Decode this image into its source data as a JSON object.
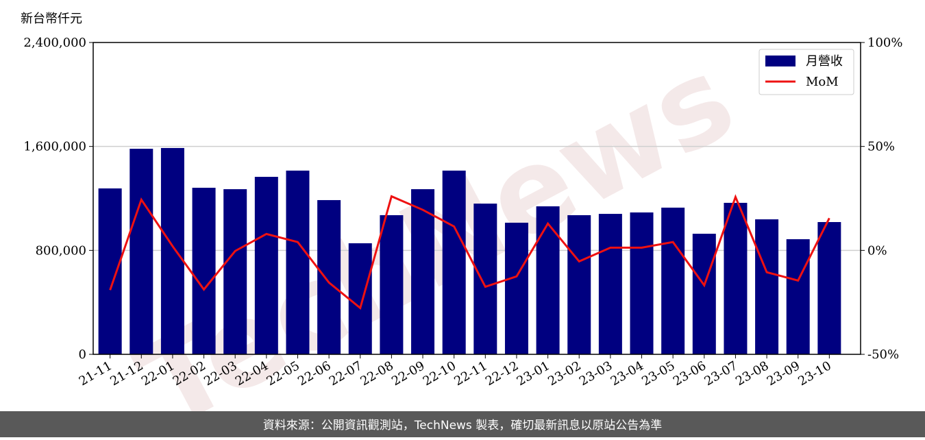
{
  "chart_data": {
    "type": "bar_line",
    "y_axis_unit": "新台幣仟元",
    "watermark": "TechNews",
    "footer": "資料來源：公開資訊觀測站，TechNews 製表，確切最新訊息以原站公告為準",
    "categories": [
      "21-11",
      "21-12",
      "22-01",
      "22-02",
      "22-03",
      "22-04",
      "22-05",
      "22-06",
      "22-07",
      "22-08",
      "22-09",
      "22-10",
      "22-11",
      "22-12",
      "23-01",
      "23-02",
      "23-03",
      "23-04",
      "23-05",
      "23-06",
      "23-07",
      "23-08",
      "23-09",
      "23-10"
    ],
    "series": [
      {
        "name": "月營收",
        "type": "bar",
        "color": "#000080",
        "values": [
          1277000,
          1582000,
          1588000,
          1282000,
          1271000,
          1366000,
          1414000,
          1187000,
          855000,
          1071000,
          1271000,
          1414000,
          1160000,
          1013000,
          1139000,
          1071000,
          1081000,
          1092000,
          1129000,
          928000,
          1166000,
          1039000,
          886000,
          1018000
        ]
      },
      {
        "name": "MoM",
        "type": "line",
        "axis": "y2",
        "color": "#ee1111",
        "values": [
          -19.1,
          24.4,
          2.0,
          -18.8,
          -0.3,
          7.9,
          4.0,
          -15.5,
          -27.7,
          26.0,
          19.5,
          11.5,
          -17.5,
          -12.5,
          12.9,
          -5.3,
          1.3,
          1.3,
          4.0,
          -16.8,
          25.7,
          -10.5,
          -14.5,
          15.5
        ]
      }
    ],
    "ylim": [
      0,
      2400000
    ],
    "yticks": [
      0,
      {
        "value": 800000,
        "label": "800,000"
      },
      {
        "value": 1600000,
        "label": "1,600,000"
      },
      {
        "value": 2400000,
        "label": "2,400,000"
      }
    ],
    "y2lim": [
      -50,
      100
    ],
    "y2ticks": [
      {
        "value": -50,
        "label": "-50%"
      },
      {
        "value": 0,
        "label": "0%"
      },
      {
        "value": 50,
        "label": "50%"
      },
      {
        "value": 100,
        "label": "100%"
      }
    ],
    "grid": true,
    "legend": "upper right"
  }
}
